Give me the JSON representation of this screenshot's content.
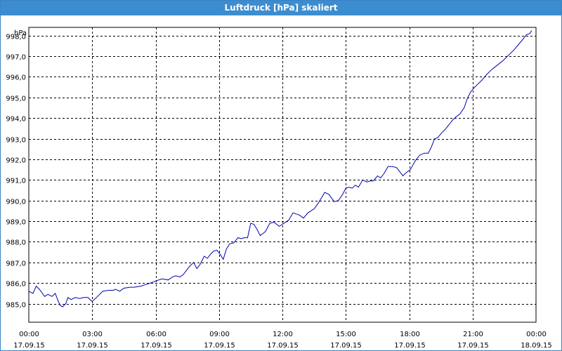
{
  "window": {
    "title": "Luftdruck [hPa] skaliert"
  },
  "chart_data": {
    "type": "line",
    "title": "Luftdruck [hPa] skaliert",
    "ylabel": "hPa",
    "xlabel": "",
    "ylim": [
      984.1,
      998.4
    ],
    "xlim_hours": [
      0,
      24
    ],
    "grid": true,
    "y_ticks": [
      "985,0",
      "986,0",
      "987,0",
      "988,0",
      "989,0",
      "990,0",
      "991,0",
      "992,0",
      "993,0",
      "994,0",
      "995,0",
      "996,0",
      "997,0",
      "998,0"
    ],
    "y_tick_values": [
      985,
      986,
      987,
      988,
      989,
      990,
      991,
      992,
      993,
      994,
      995,
      996,
      997,
      998
    ],
    "x_ticks": [
      {
        "time": "00:00",
        "date": "17.09.15"
      },
      {
        "time": "03:00",
        "date": "17.09.15"
      },
      {
        "time": "06:00",
        "date": "17.09.15"
      },
      {
        "time": "09:00",
        "date": "17.09.15"
      },
      {
        "time": "12:00",
        "date": "17.09.15"
      },
      {
        "time": "15:00",
        "date": "17.09.15"
      },
      {
        "time": "18:00",
        "date": "17.09.15"
      },
      {
        "time": "21:00",
        "date": "17.09.15"
      },
      {
        "time": "00:00",
        "date": "18.09.15"
      }
    ],
    "series": [
      {
        "color": "#0000aa",
        "x_hours": [
          0,
          0.2,
          0.35,
          0.5,
          0.75,
          0.9,
          1.1,
          1.25,
          1.4,
          1.5,
          1.6,
          1.75,
          1.85,
          2.0,
          2.2,
          2.4,
          2.6,
          2.8,
          3.0,
          3.1,
          3.3,
          3.5,
          3.8,
          4.0,
          4.1,
          4.3,
          4.5,
          4.8,
          5.0,
          5.3,
          5.6,
          5.9,
          6.0,
          6.3,
          6.6,
          6.8,
          6.95,
          7.15,
          7.3,
          7.45,
          7.6,
          7.8,
          7.95,
          8.1,
          8.3,
          8.45,
          8.6,
          8.75,
          8.9,
          9.05,
          9.2,
          9.35,
          9.5,
          9.7,
          9.9,
          10.05,
          10.2,
          10.35,
          10.5,
          10.65,
          10.8,
          10.95,
          11.2,
          11.4,
          11.6,
          11.85,
          12.0,
          12.3,
          12.5,
          12.65,
          12.8,
          13.0,
          13.2,
          13.5,
          13.65,
          13.8,
          14.0,
          14.2,
          14.45,
          14.65,
          14.85,
          15.0,
          15.15,
          15.3,
          15.45,
          15.6,
          15.8,
          16.0,
          16.15,
          16.3,
          16.5,
          16.65,
          16.8,
          17.0,
          17.2,
          17.4,
          17.55,
          17.7,
          17.85,
          18.05,
          18.3,
          18.5,
          18.7,
          18.9,
          19.05,
          19.2,
          19.35,
          19.55,
          19.7,
          19.9,
          20.05,
          20.2,
          20.4,
          20.6,
          20.75,
          20.9,
          21.05,
          21.2,
          21.45,
          21.65,
          21.9,
          22.15,
          22.45,
          22.7,
          22.95,
          23.2,
          23.4,
          23.55,
          23.7,
          23.8
        ],
        "values": [
          985.6,
          985.5,
          985.85,
          985.7,
          985.35,
          985.45,
          985.35,
          985.5,
          985.1,
          984.9,
          984.85,
          985.0,
          985.3,
          985.2,
          985.3,
          985.25,
          985.3,
          985.3,
          985.1,
          985.2,
          985.4,
          985.6,
          985.65,
          985.65,
          985.7,
          985.6,
          985.75,
          985.8,
          985.8,
          985.85,
          985.95,
          986.05,
          986.1,
          986.2,
          986.15,
          986.3,
          986.35,
          986.3,
          986.4,
          986.6,
          986.8,
          987.0,
          986.7,
          986.9,
          987.3,
          987.2,
          987.4,
          987.55,
          987.6,
          987.4,
          987.15,
          987.65,
          987.9,
          987.95,
          988.2,
          988.15,
          988.2,
          988.2,
          988.9,
          988.85,
          988.6,
          988.3,
          988.5,
          988.9,
          988.95,
          988.75,
          988.85,
          989.05,
          989.4,
          989.35,
          989.3,
          989.15,
          989.4,
          989.6,
          989.8,
          990.05,
          990.4,
          990.3,
          989.95,
          990.0,
          990.3,
          990.6,
          990.65,
          990.6,
          990.75,
          990.65,
          991.0,
          990.9,
          990.95,
          990.95,
          991.2,
          991.1,
          991.3,
          991.65,
          991.65,
          991.6,
          991.4,
          991.2,
          991.35,
          991.5,
          991.95,
          992.2,
          992.3,
          992.3,
          992.6,
          993.0,
          993.05,
          993.3,
          993.45,
          993.7,
          993.9,
          994.05,
          994.2,
          994.5,
          994.95,
          995.25,
          995.45,
          995.6,
          995.85,
          996.1,
          996.35,
          996.55,
          996.8,
          997.05,
          997.3,
          997.6,
          997.85,
          998.05,
          998.1,
          998.25
        ]
      }
    ]
  }
}
